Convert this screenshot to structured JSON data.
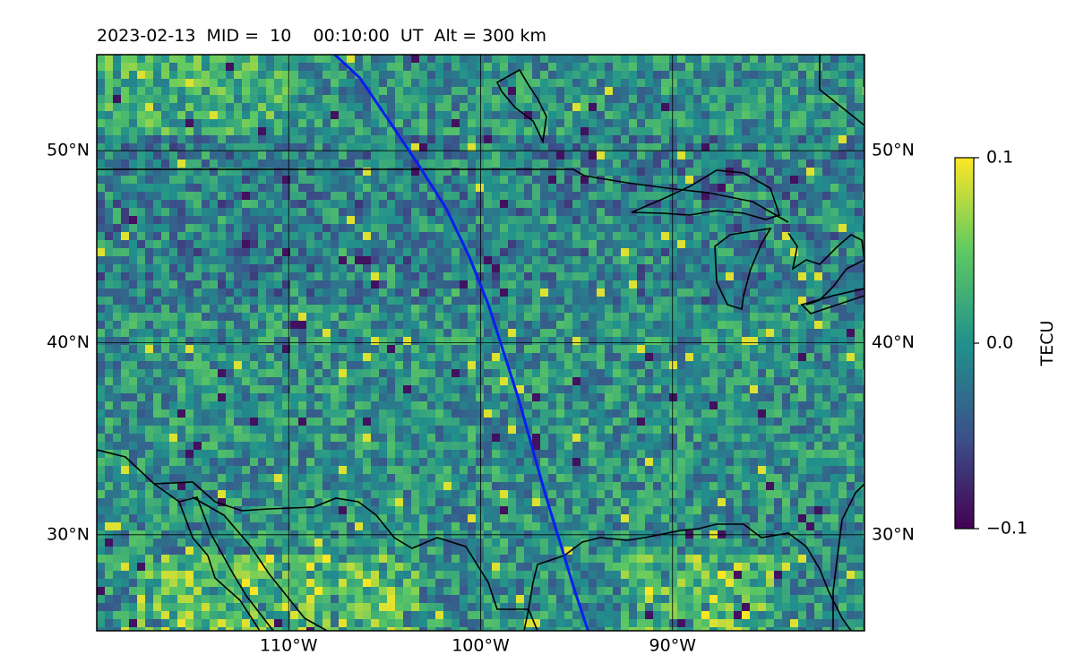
{
  "title": "2023-02-13  MID =  10    00:10:00  UT  Alt = 300 km",
  "map": {
    "lon_range": [
      -120,
      -80
    ],
    "lat_range": [
      25,
      55
    ],
    "lat_ticks": [
      {
        "value": 50,
        "label": "50°N"
      },
      {
        "value": 40,
        "label": "40°N"
      },
      {
        "value": 30,
        "label": "30°N"
      }
    ],
    "lon_ticks": [
      {
        "value": -110,
        "label": "110°W"
      },
      {
        "value": -100,
        "label": "100°W"
      },
      {
        "value": -90,
        "label": "90°W"
      }
    ],
    "field": "TEC perturbation (checkered noise, mostly teal, purple band near 43-50°N, yellow patches along southern edge)",
    "track_color": "#0a1ef0",
    "track_points_lonlat": [
      [
        -107.6,
        55
      ],
      [
        -106.3,
        53.8
      ],
      [
        -104.8,
        51.6
      ],
      [
        -103.2,
        49.2
      ],
      [
        -101.8,
        47.0
      ],
      [
        -100.6,
        44.5
      ],
      [
        -99.6,
        42.0
      ],
      [
        -98.8,
        39.5
      ],
      [
        -98.0,
        37.0
      ],
      [
        -97.3,
        34.5
      ],
      [
        -96.6,
        32.0
      ],
      [
        -95.8,
        29.4
      ],
      [
        -95.1,
        27.1
      ],
      [
        -94.4,
        25.0
      ]
    ]
  },
  "colorbar": {
    "label": "TECU",
    "ticks": [
      {
        "value": 0.1,
        "label": "0.1"
      },
      {
        "value": 0.0,
        "label": "0.0"
      },
      {
        "value": -0.1,
        "label": "−0.1"
      }
    ],
    "colormap": [
      "#440154",
      "#3b528b",
      "#21918c",
      "#5ec962",
      "#fde725"
    ]
  }
}
